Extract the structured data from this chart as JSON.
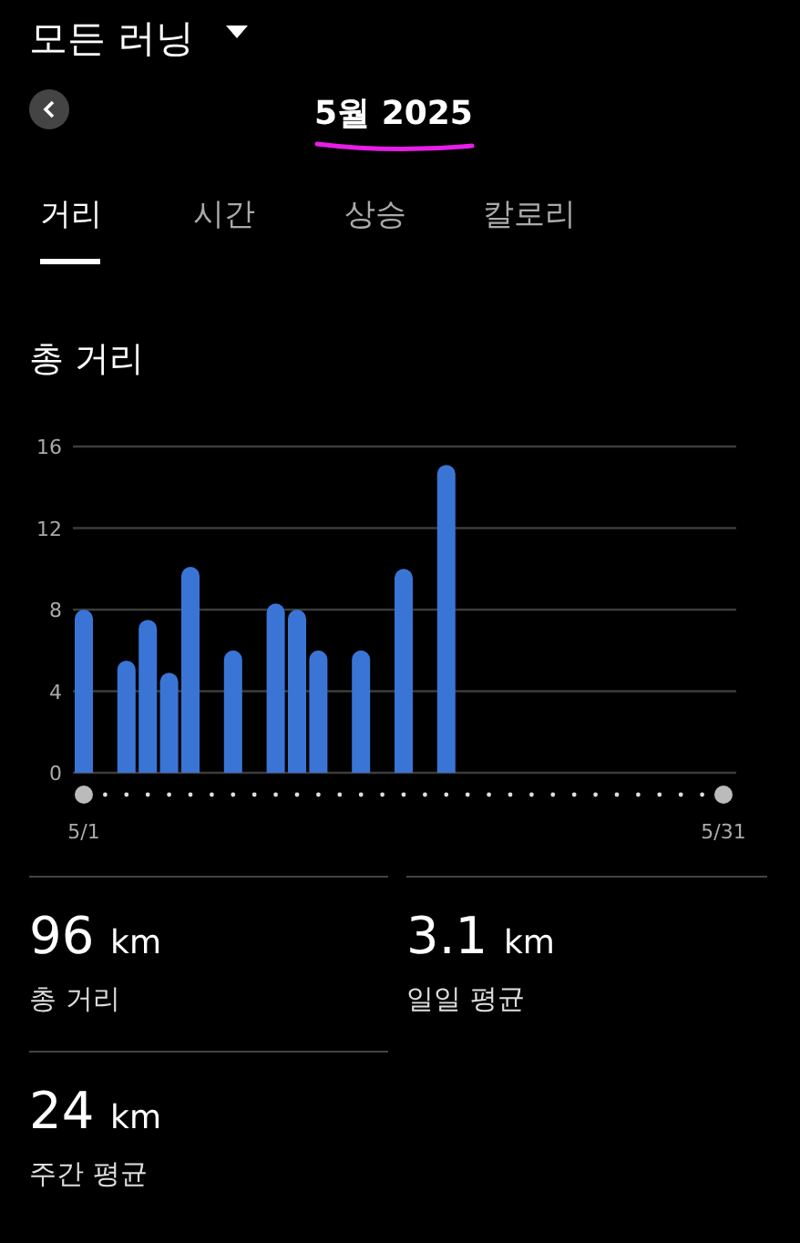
{
  "chart_data": {
    "type": "bar",
    "title": "총 거리",
    "categories": [
      "5/1",
      null,
      null,
      null,
      null,
      null,
      null,
      null,
      null,
      null,
      null,
      null,
      null,
      null,
      null,
      null,
      null,
      null,
      null,
      null,
      null,
      null,
      null,
      null,
      null,
      null,
      null,
      null,
      null,
      null,
      "5/31"
    ],
    "values": [
      8.0,
      null,
      5.5,
      7.5,
      4.9,
      10.1,
      null,
      6.0,
      null,
      8.3,
      8.0,
      6.0,
      null,
      6.0,
      null,
      10.0,
      null,
      15.1,
      null,
      null,
      null,
      null,
      null,
      null,
      null,
      null,
      null,
      null,
      null,
      null,
      null
    ],
    "color": "#3a75d6",
    "ylim": [
      0,
      16
    ],
    "yticks": [
      0,
      4,
      8,
      12,
      16
    ],
    "grid": "y",
    "annotations": [
      "모든 러닝",
      "5월 2025",
      "거리",
      "시간",
      "상승",
      "칼로리",
      "96 km",
      "총 거리",
      "3.1 km",
      "일일 평균",
      "24 km",
      "주간 평균"
    ]
  }
}
